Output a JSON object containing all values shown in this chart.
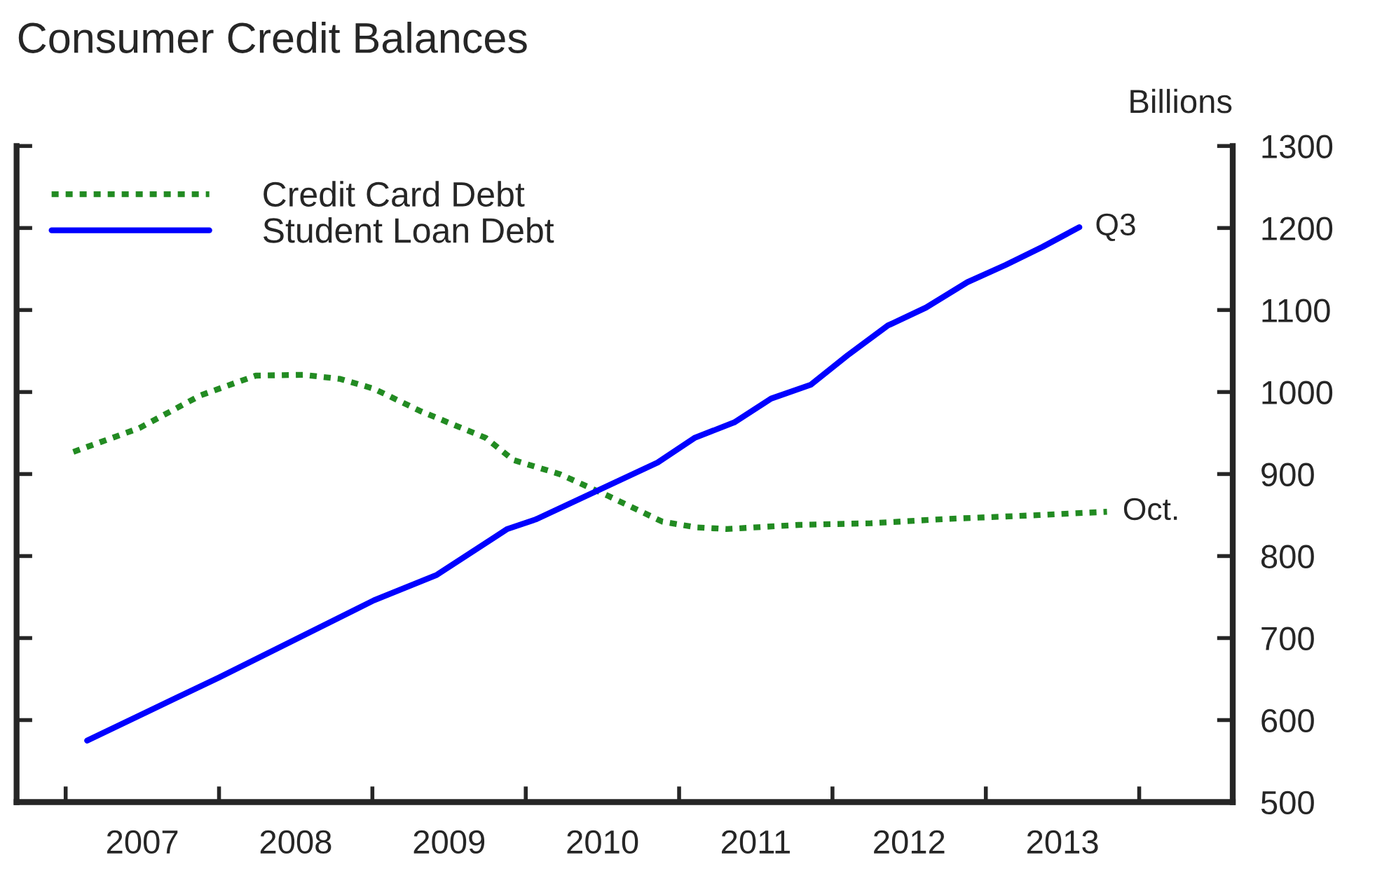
{
  "chart_data": {
    "type": "line",
    "title": "Consumer Credit Balances",
    "ylabel": "Billions",
    "xlim": [
      2006.68,
      2014.61
    ],
    "ylim": [
      500,
      1300
    ],
    "xticks": [
      {
        "value": 2007,
        "label": null
      },
      {
        "value": 2008,
        "label": null
      },
      {
        "value": 2009,
        "label": null
      },
      {
        "value": 2010,
        "label": null
      },
      {
        "value": 2011,
        "label": null
      },
      {
        "value": 2012,
        "label": null
      },
      {
        "value": 2013,
        "label": null
      },
      {
        "value": 2014,
        "label": null
      },
      {
        "value": 2007.5,
        "label": "2007"
      },
      {
        "value": 2008.5,
        "label": "2008"
      },
      {
        "value": 2009.5,
        "label": "2009"
      },
      {
        "value": 2010.5,
        "label": "2010"
      },
      {
        "value": 2011.5,
        "label": "2011"
      },
      {
        "value": 2012.5,
        "label": "2012"
      },
      {
        "value": 2013.5,
        "label": "2013"
      }
    ],
    "yticks": [
      500,
      600,
      700,
      800,
      900,
      1000,
      1100,
      1200,
      1300
    ],
    "grid": false,
    "legend": "top left",
    "series": [
      {
        "name": "Credit Card Debt",
        "color": "#228b22",
        "line_style": "dotted",
        "x": [
          2007.05,
          2007.48,
          2007.88,
          2008.24,
          2008.55,
          2008.79,
          2009.01,
          2009.31,
          2009.74,
          2009.92,
          2010.22,
          2010.53,
          2010.89,
          2011.11,
          2011.31,
          2011.78,
          2012.25,
          2012.72,
          2013.35,
          2013.79
        ],
        "values": [
          927,
          956,
          996,
          1020,
          1021,
          1016,
          1004,
          977,
          944,
          917,
          900,
          874,
          842,
          835,
          833,
          838,
          840,
          845,
          850,
          854
        ]
      },
      {
        "name": "Student Loan Debt",
        "color": "#0000ff",
        "line_style": "solid",
        "x": [
          2007.14,
          2008.0,
          2009.01,
          2009.42,
          2009.88,
          2010.07,
          2010.86,
          2011.1,
          2011.36,
          2011.6,
          2011.86,
          2012.1,
          2012.36,
          2012.61,
          2012.88,
          2013.13,
          2013.37,
          2013.61
        ],
        "values": [
          575,
          652,
          746,
          777,
          833,
          845,
          914,
          944,
          963,
          992,
          1009,
          1045,
          1081,
          1103,
          1134,
          1155,
          1177,
          1201
        ]
      }
    ],
    "annotations": [
      {
        "text": "Oct.",
        "x": 2013.79,
        "y": 854
      },
      {
        "text": "Q3",
        "x": 2013.61,
        "y": 1201
      }
    ]
  }
}
